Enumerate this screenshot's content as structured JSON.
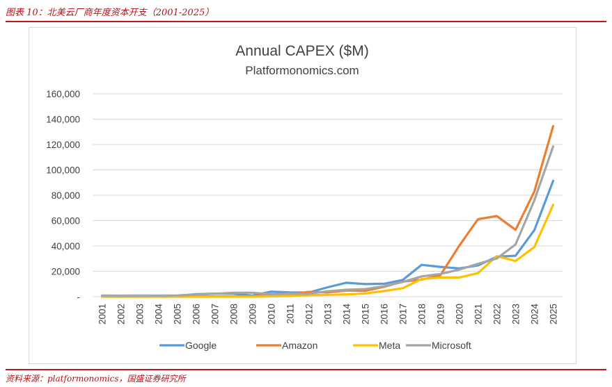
{
  "figure_title": "图表 10：北美云厂商年度资本开支（2001-2025）",
  "source_note": "资料来源：platformonomics，国盛证券研究所",
  "chart_data": {
    "type": "line",
    "title": "Annual CAPEX ($M)",
    "subtitle": "Platformonomics.com",
    "ylim": [
      0,
      160000
    ],
    "yticks": [
      0,
      20000,
      40000,
      60000,
      80000,
      100000,
      120000,
      140000,
      160000
    ],
    "ytick_labels": [
      "-",
      "20,000",
      "40,000",
      "60,000",
      "80,000",
      "100,000",
      "120,000",
      "140,000",
      "160,000"
    ],
    "grid": true,
    "legend_position": "bottom",
    "x": [
      "2001",
      "2002",
      "2003",
      "2004",
      "2005",
      "2006",
      "2007",
      "2008",
      "2009",
      "2010",
      "2011",
      "2012",
      "2013",
      "2014",
      "2015",
      "2016",
      "2017",
      "2018",
      "2019",
      "2020",
      "2021",
      "2022",
      "2023",
      "2024",
      "2025"
    ],
    "series": [
      {
        "name": "Google",
        "color": "#5b9bd5",
        "values": [
          0,
          0,
          200,
          300,
          800,
          1900,
          2400,
          2400,
          800,
          4000,
          3400,
          3300,
          7400,
          11000,
          9900,
          10200,
          13200,
          25100,
          23500,
          22300,
          24600,
          31500,
          32300,
          52500,
          91400
        ]
      },
      {
        "name": "Amazon",
        "color": "#ed7d31",
        "values": [
          0,
          0,
          0,
          0,
          0,
          200,
          200,
          300,
          400,
          1000,
          1800,
          3800,
          3400,
          4900,
          4600,
          7800,
          11900,
          13400,
          16900,
          40100,
          61100,
          63600,
          52700,
          83000,
          134500
        ]
      },
      {
        "name": "Meta",
        "color": "#ffc000",
        "values": [
          0,
          0,
          0,
          0,
          0,
          0,
          0,
          0,
          0,
          300,
          600,
          1200,
          1400,
          1800,
          2500,
          4500,
          6700,
          13900,
          15100,
          15100,
          18600,
          32000,
          28100,
          39200,
          72500
        ]
      },
      {
        "name": "Microsoft",
        "color": "#a5a5a5",
        "values": [
          900,
          800,
          900,
          800,
          1000,
          1600,
          2300,
          3100,
          3100,
          2000,
          2400,
          2300,
          4300,
          5500,
          6000,
          8300,
          11600,
          16000,
          17900,
          21300,
          25900,
          30100,
          41200,
          76000,
          118500
        ]
      }
    ]
  }
}
